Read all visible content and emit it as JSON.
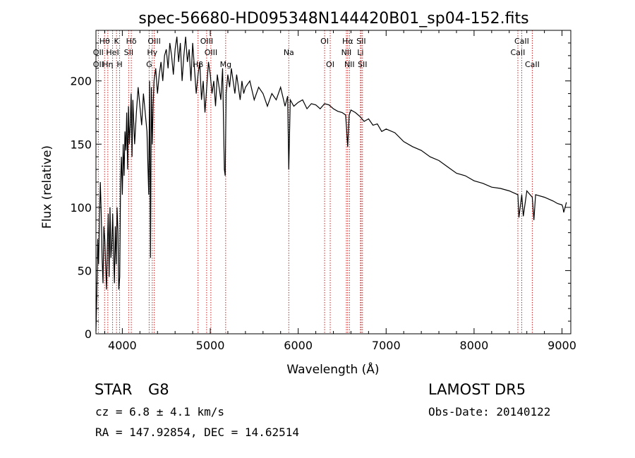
{
  "chart_data": {
    "type": "line",
    "title": "spec-56680-HD095348N144420B01_sp04-152.fits",
    "xlabel": "Wavelength (Å)",
    "ylabel": "Flux (relative)",
    "xlim": [
      3700,
      9100
    ],
    "ylim": [
      0,
      240
    ],
    "xticks": [
      4000,
      5000,
      6000,
      7000,
      8000,
      9000
    ],
    "yticks": [
      0,
      50,
      100,
      150,
      200
    ],
    "grid": false,
    "line_color": "#000000",
    "marker_color": "#cc2222",
    "series": [
      {
        "x": [
          3700,
          3710,
          3720,
          3730,
          3740,
          3750,
          3760,
          3770,
          3780,
          3790,
          3800,
          3810,
          3820,
          3830,
          3840,
          3850,
          3860,
          3870,
          3880,
          3890,
          3900,
          3910,
          3920,
          3930,
          3940,
          3950,
          3960,
          3970,
          3980,
          3990,
          4000,
          4010,
          4020,
          4030,
          4040,
          4050,
          4060,
          4070,
          4080,
          4090,
          4100,
          4110,
          4120,
          4140,
          4160,
          4180,
          4200,
          4220,
          4240,
          4260,
          4280,
          4300,
          4310,
          4320,
          4330,
          4340,
          4350,
          4360,
          4380,
          4400,
          4420,
          4440,
          4460,
          4480,
          4500,
          4520,
          4540,
          4560,
          4580,
          4600,
          4620,
          4640,
          4660,
          4680,
          4700,
          4720,
          4740,
          4760,
          4780,
          4800,
          4820,
          4840,
          4861,
          4880,
          4900,
          4920,
          4940,
          4960,
          4980,
          5000,
          5020,
          5040,
          5060,
          5080,
          5100,
          5120,
          5140,
          5160,
          5170,
          5180,
          5200,
          5220,
          5240,
          5260,
          5280,
          5300,
          5320,
          5340,
          5360,
          5380,
          5400,
          5450,
          5500,
          5550,
          5600,
          5650,
          5700,
          5750,
          5800,
          5850,
          5880,
          5893,
          5910,
          5950,
          6000,
          6050,
          6100,
          6150,
          6200,
          6250,
          6300,
          6350,
          6400,
          6450,
          6500,
          6540,
          6563,
          6580,
          6600,
          6650,
          6700,
          6750,
          6800,
          6850,
          6900,
          6950,
          7000,
          7100,
          7200,
          7300,
          7400,
          7500,
          7600,
          7700,
          7800,
          7900,
          8000,
          8100,
          8200,
          8300,
          8400,
          8498,
          8510,
          8542,
          8560,
          8600,
          8662,
          8680,
          8700,
          8800,
          8900,
          8950,
          9000,
          9010,
          9020,
          9050
        ],
        "y": [
          2,
          30,
          75,
          55,
          90,
          120,
          95,
          60,
          40,
          85,
          75,
          55,
          35,
          70,
          95,
          45,
          100,
          60,
          70,
          95,
          65,
          40,
          85,
          55,
          100,
          80,
          35,
          45,
          120,
          140,
          110,
          150,
          125,
          160,
          145,
          175,
          130,
          180,
          150,
          165,
          190,
          140,
          185,
          150,
          175,
          195,
          180,
          165,
          190,
          175,
          160,
          110,
          200,
          60,
          195,
          150,
          180,
          200,
          210,
          190,
          205,
          215,
          200,
          220,
          225,
          210,
          230,
          220,
          205,
          225,
          235,
          215,
          230,
          200,
          220,
          235,
          215,
          225,
          200,
          230,
          210,
          190,
          205,
          215,
          185,
          200,
          175,
          195,
          215,
          205,
          190,
          200,
          180,
          205,
          195,
          185,
          210,
          130,
          125,
          190,
          205,
          195,
          210,
          200,
          190,
          205,
          195,
          185,
          200,
          190,
          195,
          200,
          185,
          195,
          190,
          180,
          190,
          185,
          195,
          180,
          188,
          130,
          185,
          180,
          183,
          185,
          178,
          182,
          181,
          178,
          182,
          181,
          178,
          176,
          175,
          173,
          148,
          173,
          177,
          175,
          172,
          168,
          170,
          165,
          166,
          160,
          162,
          159,
          152,
          148,
          145,
          140,
          137,
          132,
          127,
          125,
          121,
          119,
          116,
          115,
          113,
          110,
          92,
          110,
          93,
          113,
          108,
          90,
          110,
          108,
          105,
          103,
          102,
          100,
          96,
          104
        ]
      }
    ],
    "lines": [
      {
        "label": "Hθ",
        "x": 3798,
        "row": 1
      },
      {
        "label": "OII",
        "x": 3727,
        "row": 2
      },
      {
        "label": "OII",
        "x": 3727,
        "row": 3
      },
      {
        "label": "K",
        "x": 3934,
        "row": 1
      },
      {
        "label": "HeI",
        "x": 3889,
        "row": 2
      },
      {
        "label": "Hη",
        "x": 3835,
        "row": 3
      },
      {
        "label": "H",
        "x": 3969,
        "row": 3
      },
      {
        "label": "Hδ",
        "x": 4102,
        "row": 1
      },
      {
        "label": "SII",
        "x": 4072,
        "row": 2
      },
      {
        "label": "OIII",
        "x": 4363,
        "row": 1
      },
      {
        "label": "Hγ",
        "x": 4340,
        "row": 2
      },
      {
        "label": "G",
        "x": 4305,
        "row": 3
      },
      {
        "label": "OIII",
        "x": 4959,
        "row": 1
      },
      {
        "label": "OIII",
        "x": 5007,
        "row": 2
      },
      {
        "label": "Hβ",
        "x": 4861,
        "row": 3
      },
      {
        "label": "Mg",
        "x": 5175,
        "row": 3
      },
      {
        "label": "Na",
        "x": 5893,
        "row": 2
      },
      {
        "label": "OI",
        "x": 6300,
        "row": 1
      },
      {
        "label": "OI",
        "x": 6364,
        "row": 3
      },
      {
        "label": "Hα",
        "x": 6563,
        "row": 1
      },
      {
        "label": "SII",
        "x": 6716,
        "row": 1
      },
      {
        "label": "NII",
        "x": 6548,
        "row": 2
      },
      {
        "label": "Li",
        "x": 6708,
        "row": 2
      },
      {
        "label": "NII",
        "x": 6583,
        "row": 3
      },
      {
        "label": "SII",
        "x": 6731,
        "row": 3
      },
      {
        "label": "CaII",
        "x": 8542,
        "row": 1
      },
      {
        "label": "CaII",
        "x": 8498,
        "row": 2
      },
      {
        "label": "CaII",
        "x": 8662,
        "row": 3
      }
    ]
  },
  "info": {
    "class_label": "STAR",
    "subclass": "G8",
    "survey": "LAMOST  DR5",
    "cz": "cz = 6.8 ± 4.1 km/s",
    "obs_date": "Obs-Date: 20140122",
    "coords": "RA = 147.92854, DEC =  14.62514"
  }
}
